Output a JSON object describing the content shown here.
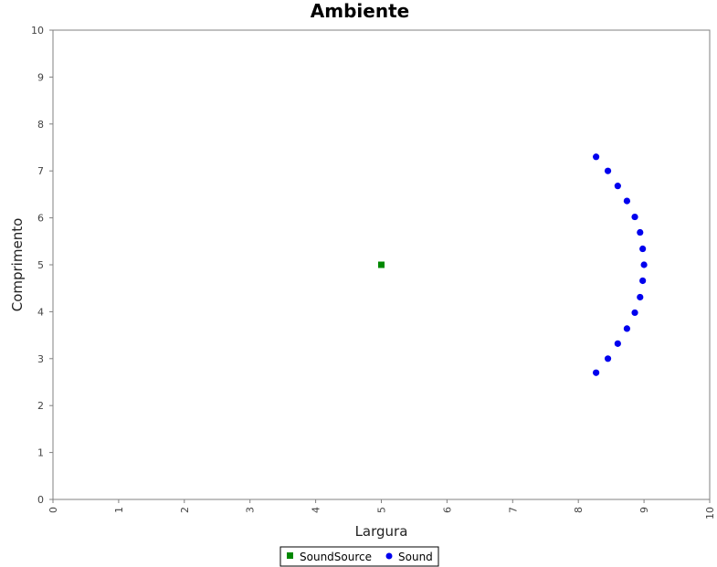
{
  "chart_data": {
    "type": "scatter",
    "title": "Ambiente",
    "xlabel": "Largura",
    "ylabel": "Comprimento",
    "xlim": [
      0,
      10
    ],
    "ylim": [
      0,
      10
    ],
    "xticks": [
      "0",
      "1",
      "2",
      "3",
      "4",
      "5",
      "6",
      "7",
      "8",
      "9",
      "10"
    ],
    "yticks": [
      "0",
      "1",
      "2",
      "3",
      "4",
      "5",
      "6",
      "7",
      "8",
      "9",
      "10"
    ],
    "grid": false,
    "legend_position": "bottom-center",
    "series": [
      {
        "name": "SoundSource",
        "color": "#008800",
        "marker": "square",
        "points": [
          {
            "x": 5.0,
            "y": 5.0
          }
        ]
      },
      {
        "name": "Sound",
        "color": "#0000ee",
        "marker": "circle",
        "points": [
          {
            "x": 8.27,
            "y": 7.3
          },
          {
            "x": 8.45,
            "y": 7.0
          },
          {
            "x": 8.6,
            "y": 6.68
          },
          {
            "x": 8.74,
            "y": 6.36
          },
          {
            "x": 8.86,
            "y": 6.02
          },
          {
            "x": 8.94,
            "y": 5.69
          },
          {
            "x": 8.98,
            "y": 5.34
          },
          {
            "x": 9.0,
            "y": 5.0
          },
          {
            "x": 8.98,
            "y": 4.66
          },
          {
            "x": 8.94,
            "y": 4.31
          },
          {
            "x": 8.86,
            "y": 3.98
          },
          {
            "x": 8.74,
            "y": 3.64
          },
          {
            "x": 8.6,
            "y": 3.32
          },
          {
            "x": 8.45,
            "y": 3.0
          },
          {
            "x": 8.27,
            "y": 2.7
          }
        ]
      }
    ]
  }
}
